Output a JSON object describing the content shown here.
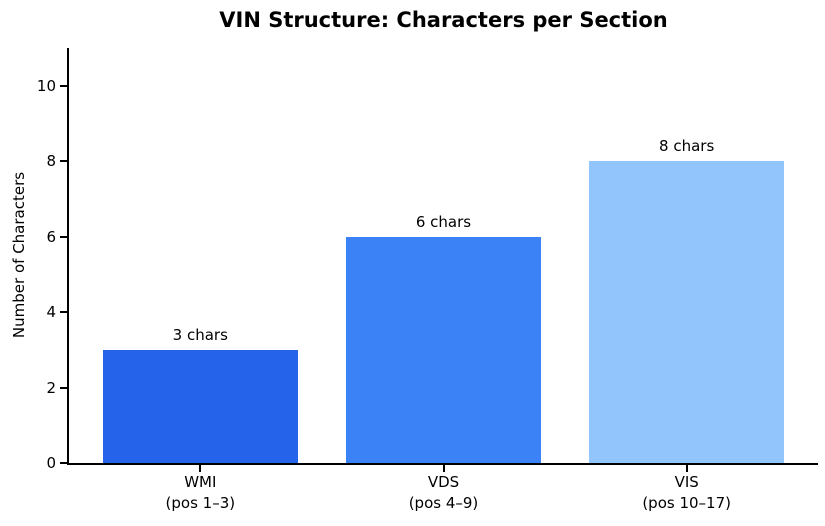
{
  "chart_data": {
    "type": "bar",
    "title": "VIN Structure: Characters per Section",
    "xlabel": "",
    "ylabel": "Number of Characters",
    "categories": [
      "WMI\n(pos 1–3)",
      "VDS\n(pos 4–9)",
      "VIS\n(pos 10–17)"
    ],
    "values": [
      3,
      6,
      8
    ],
    "bar_labels": [
      "3 chars",
      "6 chars",
      "8 chars"
    ],
    "bar_colors": [
      "#2563eb",
      "#3b82f6",
      "#93c5fd"
    ],
    "ylim": [
      0,
      11
    ],
    "yticks": [
      0,
      2,
      4,
      6,
      8,
      10
    ],
    "grid": false,
    "legend_position": "none",
    "background_color": "#ffffff",
    "axis_color": "#000000",
    "text_color": "#000000"
  }
}
